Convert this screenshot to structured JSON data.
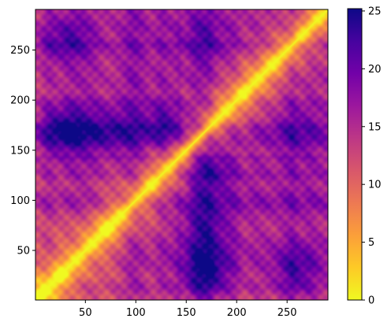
{
  "chart_data": {
    "type": "heatmap",
    "title": "",
    "xlabel": "",
    "ylabel": "",
    "matrix_size": 290,
    "xlim": [
      1,
      290
    ],
    "ylim": [
      1,
      290
    ],
    "y_origin": "lower",
    "x_ticks": [
      50,
      100,
      150,
      200,
      250
    ],
    "y_ticks": [
      50,
      100,
      150,
      200,
      250
    ],
    "colormap": "plasma_r",
    "colormap_stops": [
      "#f0f921",
      "#fdca26",
      "#fb9f3a",
      "#ed7953",
      "#d8576b",
      "#bd3786",
      "#9c179e",
      "#7201a8",
      "#46039f",
      "#0d0887"
    ],
    "colorbar": {
      "min": 0,
      "max": 25.2,
      "ticks": [
        0,
        5,
        10,
        15,
        20,
        25
      ]
    },
    "diagonal_value": 0,
    "high_distance_regions": [
      {
        "x": 30,
        "y": 170,
        "value": 24.5
      },
      {
        "x": 170,
        "y": 30,
        "value": 24.5
      },
      {
        "x": 75,
        "y": 170,
        "value": 21
      },
      {
        "x": 170,
        "y": 75,
        "value": 21
      },
      {
        "x": 130,
        "y": 172,
        "value": 22
      },
      {
        "x": 172,
        "y": 130,
        "value": 22
      },
      {
        "x": 30,
        "y": 260,
        "value": 21
      },
      {
        "x": 260,
        "y": 30,
        "value": 21
      },
      {
        "x": 170,
        "y": 260,
        "value": 18
      },
      {
        "x": 260,
        "y": 170,
        "value": 18
      }
    ]
  }
}
